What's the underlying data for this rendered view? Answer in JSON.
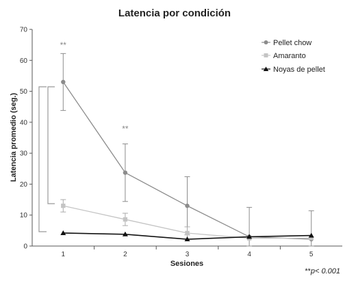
{
  "chart_data": {
    "type": "line",
    "title": "Latencia por condición",
    "xlabel": "Sesiones",
    "ylabel": "Latencia promedio (seg.)",
    "x": [
      1,
      2,
      3,
      4,
      5
    ],
    "xlim": [
      0.5,
      5.5
    ],
    "ylim": [
      0,
      70
    ],
    "yticks": [
      0,
      10,
      20,
      30,
      40,
      50,
      60,
      70
    ],
    "grid": false,
    "legend_position": "top-right",
    "series": [
      {
        "name": "Pellet chow",
        "marker": "circle",
        "color": "#8c8c8c",
        "values": [
          53.0,
          23.7,
          13.0,
          3.0,
          2.2
        ],
        "error": [
          9.2,
          9.3,
          9.4,
          9.5,
          9.2
        ]
      },
      {
        "name": "Amaranto",
        "marker": "square",
        "color": "#c4c4c4",
        "values": [
          13.0,
          8.6,
          4.2,
          2.5,
          2.6
        ],
        "error": [
          2.0,
          2.0,
          2.0,
          0.0,
          0.0
        ]
      },
      {
        "name": "Noyas de pellet",
        "marker": "triangle",
        "color": "#111111",
        "values": [
          4.2,
          3.8,
          2.2,
          3.0,
          3.4
        ],
        "error": [
          0,
          0,
          0,
          0,
          0
        ]
      }
    ],
    "annotations": [
      {
        "text": "**",
        "x": 1,
        "y": 64
      },
      {
        "text": "**",
        "x": 2,
        "y": 37
      }
    ],
    "footnote": {
      "stars": "**",
      "text": "p< 0.001"
    }
  }
}
